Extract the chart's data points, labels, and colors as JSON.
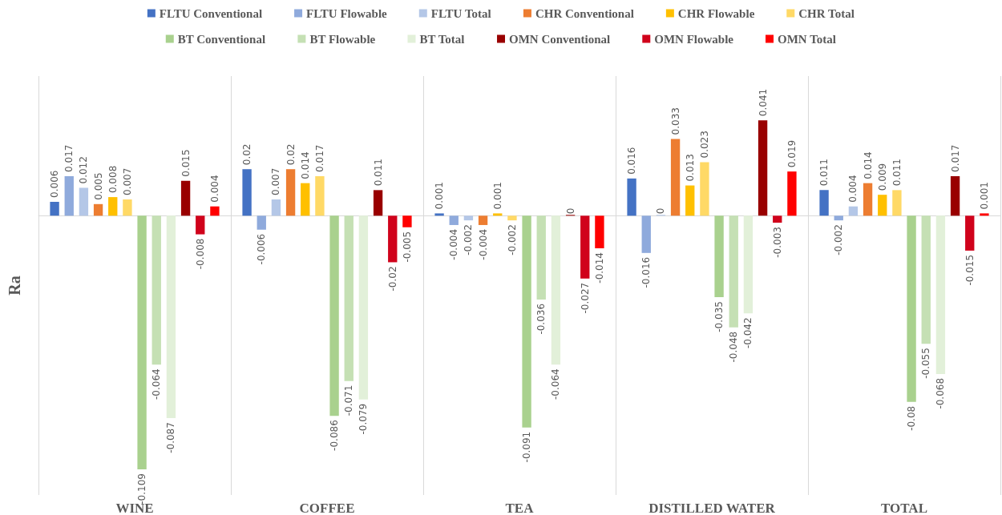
{
  "chart_data": {
    "type": "bar",
    "ylabel": "Ra",
    "categories": [
      "WINE",
      "COFFEE",
      "TEA",
      "DISTILLED WATER",
      "TOTAL"
    ],
    "series": [
      {
        "name": "FLTU Conventional",
        "color": "#4472c4",
        "values": [
          0.006,
          0.02,
          0.001,
          0.016,
          0.011
        ]
      },
      {
        "name": "FLTU Flowable",
        "color": "#8faadc",
        "values": [
          0.017,
          -0.006,
          -0.004,
          -0.016,
          -0.002
        ]
      },
      {
        "name": "FLTU Total",
        "color": "#b4c7e7",
        "values": [
          0.012,
          0.007,
          -0.002,
          0,
          0.004
        ]
      },
      {
        "name": "CHR Conventional",
        "color": "#ed7d31",
        "values": [
          0.005,
          0.02,
          -0.004,
          0.033,
          0.014
        ]
      },
      {
        "name": "CHR Flowable",
        "color": "#ffc000",
        "values": [
          0.008,
          0.014,
          0.001,
          0.013,
          0.009
        ]
      },
      {
        "name": "CHR Total",
        "color": "#ffd966",
        "values": [
          0.007,
          0.017,
          -0.002,
          0.023,
          0.011
        ]
      },
      {
        "name": "BT Conventional",
        "color": "#a9d18e",
        "values": [
          -0.109,
          -0.086,
          -0.091,
          -0.035,
          -0.08
        ]
      },
      {
        "name": "BT Flowable",
        "color": "#c5e0b4",
        "values": [
          -0.064,
          -0.071,
          -0.036,
          -0.048,
          -0.055
        ]
      },
      {
        "name": "BT Total",
        "color": "#e2f0d9",
        "values": [
          -0.087,
          -0.079,
          -0.064,
          -0.042,
          -0.068
        ]
      },
      {
        "name": "OMN Conventional",
        "color": "#990000",
        "values": [
          0.015,
          0.011,
          0,
          0.041,
          0.017
        ]
      },
      {
        "name": "OMN Flowable",
        "color": "#d0021b",
        "values": [
          -0.008,
          -0.02,
          -0.027,
          -0.003,
          -0.015
        ]
      },
      {
        "name": "OMN Total",
        "color": "#ff0000",
        "values": [
          0.004,
          -0.005,
          -0.014,
          0.019,
          0.001
        ]
      }
    ],
    "data_labels": true,
    "legend": "top",
    "grid": "x"
  }
}
